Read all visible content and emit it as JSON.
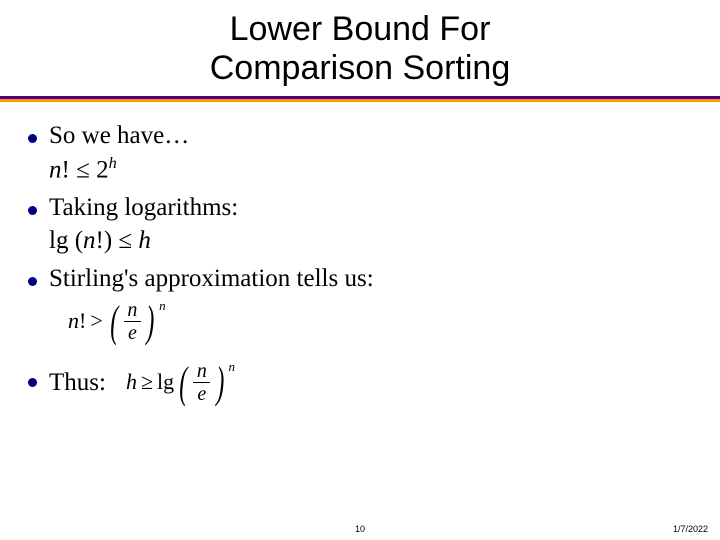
{
  "title_line1": "Lower Bound For",
  "title_line2": "Comparison Sorting",
  "bullets": {
    "b1": "So we have…",
    "b1_formula_n": "n",
    "b1_formula_excl": "!",
    "b1_formula_le": "≤",
    "b1_formula_base": "2",
    "b1_formula_exp": "h",
    "b2": "Taking logarithms:",
    "b2_formula_lg": "lg (",
    "b2_formula_n": "n",
    "b2_formula_rest": "!) ≤ ",
    "b2_formula_h": "h",
    "b3": "Stirling's approximation tells us:",
    "b4": "Thus:"
  },
  "formula1": {
    "lhs_n": "n",
    "lhs_excl": "!",
    "gt": ">",
    "num": "n",
    "den": "e",
    "exp": "n"
  },
  "formula2": {
    "h": "h",
    "ge": "≥",
    "lg": "lg",
    "num": "n",
    "den": "e",
    "exp": "n"
  },
  "footer": {
    "page": "10",
    "date": "1/7/2022"
  },
  "colors": {
    "bullet": "#000080",
    "rule_top": "#4b0082",
    "rule_bottom": "#ff9900"
  }
}
